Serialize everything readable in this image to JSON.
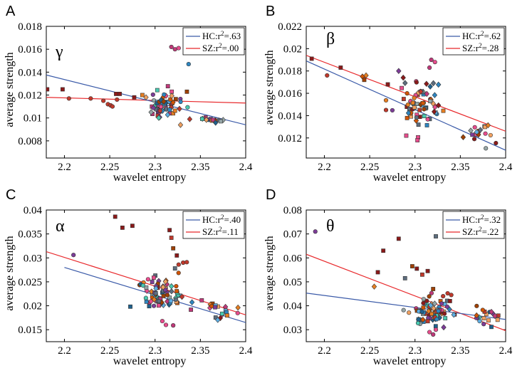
{
  "colors": {
    "hc": "#3a5aa8",
    "sz": "#e8282b",
    "palette": [
      "#c0392b",
      "#8b1a1a",
      "#e67e22",
      "#f0a060",
      "#2e86c1",
      "#5dade2",
      "#48c9b0",
      "#7d3c98",
      "#c0397a",
      "#e74c8c",
      "#95a5a6",
      "#5d6d7e",
      "#d35400",
      "#a04000",
      "#1f618d"
    ]
  },
  "chart_data": [
    {
      "panel": "A",
      "band": "γ",
      "type": "scatter",
      "xlabel": "wavelet entropy",
      "ylabel": "average strength",
      "xlim": [
        2.18,
        2.4
      ],
      "ylim": [
        0.0065,
        0.018
      ],
      "xticks": [
        2.2,
        2.25,
        2.3,
        2.35,
        2.4
      ],
      "xtick_labels": [
        "2.2",
        "2.25",
        "2.3",
        "2.35",
        "2.4"
      ],
      "yticks": [
        0.008,
        0.01,
        0.012,
        0.014,
        0.016,
        0.018
      ],
      "ytick_labels": [
        "0.008",
        "0.01",
        "0.012",
        "0.014",
        "0.016",
        "0.018"
      ],
      "legend": {
        "hc": {
          "prefix": "HC:r",
          "exp": "2",
          "suffix": "=.63"
        },
        "sz": {
          "prefix": "SZ:r",
          "exp": "2",
          "suffix": "=.00"
        }
      },
      "lines": {
        "hc": {
          "x": [
            2.18,
            2.4
          ],
          "y": [
            0.01375,
            0.0094
          ]
        },
        "sz": {
          "x": [
            2.18,
            2.4
          ],
          "y": [
            0.0118,
            0.0113
          ]
        }
      },
      "clusters": [
        {
          "cx": 2.312,
          "cy": 0.011,
          "sx": 0.01,
          "sy": 0.00065,
          "n": 60,
          "seed": 11
        },
        {
          "cx": 2.366,
          "cy": 0.00985,
          "sx": 0.009,
          "sy": 0.0001,
          "n": 16,
          "seed": 12
        }
      ],
      "points": [
        {
          "x": 2.181,
          "y": 0.0125,
          "m": "s",
          "c": 1
        },
        {
          "x": 2.198,
          "y": 0.0125,
          "m": "s",
          "c": 1
        },
        {
          "x": 2.205,
          "y": 0.0117,
          "m": "o",
          "c": 0
        },
        {
          "x": 2.229,
          "y": 0.0117,
          "m": "o",
          "c": 0
        },
        {
          "x": 2.243,
          "y": 0.0115,
          "m": "o",
          "c": 0
        },
        {
          "x": 2.248,
          "y": 0.0112,
          "m": "o",
          "c": 0
        },
        {
          "x": 2.251,
          "y": 0.0111,
          "m": "o",
          "c": 0
        },
        {
          "x": 2.253,
          "y": 0.011,
          "m": "o",
          "c": 0
        },
        {
          "x": 2.258,
          "y": 0.0116,
          "m": "o",
          "c": 0
        },
        {
          "x": 2.257,
          "y": 0.0121,
          "m": "s",
          "c": 1
        },
        {
          "x": 2.261,
          "y": 0.0121,
          "m": "s",
          "c": 1
        },
        {
          "x": 2.277,
          "y": 0.0118,
          "m": "s",
          "c": 1
        },
        {
          "x": 2.286,
          "y": 0.012,
          "m": "s",
          "c": 2
        },
        {
          "x": 2.29,
          "y": 0.0118,
          "m": "d",
          "c": 3
        },
        {
          "x": 2.318,
          "y": 0.0162,
          "m": "o",
          "c": 8
        },
        {
          "x": 2.322,
          "y": 0.016,
          "m": "o",
          "c": 8
        },
        {
          "x": 2.326,
          "y": 0.0161,
          "m": "o",
          "c": 9
        },
        {
          "x": 2.337,
          "y": 0.0147,
          "m": "o",
          "c": 4
        }
      ]
    },
    {
      "panel": "B",
      "band": "β",
      "type": "scatter",
      "xlabel": "wavelet entropy",
      "ylabel": "average strength",
      "xlim": [
        2.18,
        2.4
      ],
      "ylim": [
        0.0102,
        0.022
      ],
      "xticks": [
        2.2,
        2.25,
        2.3,
        2.35,
        2.4
      ],
      "xtick_labels": [
        "2.2",
        "2.25",
        "2.3",
        "2.35",
        "2.4"
      ],
      "yticks": [
        0.012,
        0.014,
        0.016,
        0.018,
        0.02,
        0.022
      ],
      "ytick_labels": [
        "0.012",
        "0.014",
        "0.016",
        "0.018",
        "0.02",
        "0.022"
      ],
      "legend": {
        "hc": {
          "prefix": "HC:r",
          "exp": "2",
          "suffix": "=.62"
        },
        "sz": {
          "prefix": "SZ:r",
          "exp": "2",
          "suffix": "=.28"
        }
      },
      "lines": {
        "hc": {
          "x": [
            2.18,
            2.4
          ],
          "y": [
            0.0189,
            0.0109
          ]
        },
        "sz": {
          "x": [
            2.18,
            2.4
          ],
          "y": [
            0.0194,
            0.0126
          ]
        }
      },
      "clusters": [
        {
          "cx": 2.305,
          "cy": 0.015,
          "sx": 0.012,
          "sy": 0.0011,
          "n": 70,
          "seed": 21
        },
        {
          "cx": 2.368,
          "cy": 0.0122,
          "sx": 0.01,
          "sy": 0.0006,
          "n": 18,
          "seed": 22
        }
      ],
      "points": [
        {
          "x": 2.186,
          "y": 0.0191,
          "m": "s",
          "c": 1
        },
        {
          "x": 2.203,
          "y": 0.0176,
          "m": "o",
          "c": 0
        },
        {
          "x": 2.218,
          "y": 0.0183,
          "m": "s",
          "c": 1
        },
        {
          "x": 2.242,
          "y": 0.0175,
          "m": "d",
          "c": 12
        },
        {
          "x": 2.246,
          "y": 0.0176,
          "m": "d",
          "c": 2
        },
        {
          "x": 2.244,
          "y": 0.0172,
          "m": "s",
          "c": 13
        },
        {
          "x": 2.27,
          "y": 0.0168,
          "m": "s",
          "c": 1
        },
        {
          "x": 2.268,
          "y": 0.0145,
          "m": "o",
          "c": 0
        },
        {
          "x": 2.318,
          "y": 0.019,
          "m": "o",
          "c": 8
        },
        {
          "x": 2.322,
          "y": 0.0188,
          "m": "o",
          "c": 9
        },
        {
          "x": 2.316,
          "y": 0.0183,
          "m": "o",
          "c": 8
        },
        {
          "x": 2.282,
          "y": 0.018,
          "m": "d",
          "c": 7
        },
        {
          "x": 2.287,
          "y": 0.0174,
          "m": "d",
          "c": 1
        }
      ]
    },
    {
      "panel": "C",
      "band": "α",
      "type": "scatter",
      "xlabel": "wavelet entropy",
      "ylabel": "average strength",
      "xlim": [
        2.18,
        2.4
      ],
      "ylim": [
        0.0125,
        0.04
      ],
      "xticks": [
        2.2,
        2.25,
        2.3,
        2.35,
        2.4
      ],
      "xtick_labels": [
        "2.2",
        "2.25",
        "2.3",
        "2.35",
        "2.4"
      ],
      "yticks": [
        0.015,
        0.02,
        0.025,
        0.03,
        0.035,
        0.04
      ],
      "ytick_labels": [
        "0.015",
        "0.02",
        "0.025",
        "0.03",
        "0.035",
        "0.04"
      ],
      "legend": {
        "hc": {
          "prefix": "HC:r",
          "exp": "2",
          "suffix": "=.40"
        },
        "sz": {
          "prefix": "SZ:r",
          "exp": "2",
          "suffix": "=.11"
        }
      },
      "lines": {
        "hc": {
          "x": [
            2.2,
            2.4
          ],
          "y": [
            0.028,
            0.0165
          ]
        },
        "sz": {
          "x": [
            2.18,
            2.4
          ],
          "y": [
            0.0313,
            0.0181
          ]
        }
      },
      "clusters": [
        {
          "cx": 2.305,
          "cy": 0.0222,
          "sx": 0.013,
          "sy": 0.0019,
          "n": 75,
          "seed": 31
        },
        {
          "cx": 2.37,
          "cy": 0.0192,
          "sx": 0.011,
          "sy": 0.0012,
          "n": 20,
          "seed": 32
        }
      ],
      "points": [
        {
          "x": 2.21,
          "y": 0.0306,
          "m": "o",
          "c": 7
        },
        {
          "x": 2.256,
          "y": 0.0386,
          "m": "s",
          "c": 1
        },
        {
          "x": 2.264,
          "y": 0.0363,
          "m": "s",
          "c": 1
        },
        {
          "x": 2.275,
          "y": 0.0367,
          "m": "s",
          "c": 1
        },
        {
          "x": 2.316,
          "y": 0.0358,
          "m": "s",
          "c": 1
        },
        {
          "x": 2.318,
          "y": 0.0342,
          "m": "s",
          "c": 0
        },
        {
          "x": 2.32,
          "y": 0.032,
          "m": "s",
          "c": 13
        },
        {
          "x": 2.324,
          "y": 0.0305,
          "m": "s",
          "c": 1
        },
        {
          "x": 2.322,
          "y": 0.0278,
          "m": "s",
          "c": 11
        },
        {
          "x": 2.326,
          "y": 0.0286,
          "m": "o",
          "c": 0
        },
        {
          "x": 2.331,
          "y": 0.029,
          "m": "o",
          "c": 0
        },
        {
          "x": 2.335,
          "y": 0.0291,
          "m": "o",
          "c": 0
        },
        {
          "x": 2.308,
          "y": 0.0168,
          "m": "o",
          "c": 9
        },
        {
          "x": 2.312,
          "y": 0.016,
          "m": "o",
          "c": 9
        },
        {
          "x": 2.32,
          "y": 0.0159,
          "m": "o",
          "c": 8
        }
      ]
    },
    {
      "panel": "D",
      "band": "θ",
      "type": "scatter",
      "xlabel": "wavelet entropy",
      "ylabel": "average strength",
      "xlim": [
        2.18,
        2.4
      ],
      "ylim": [
        0.025,
        0.08
      ],
      "xticks": [
        2.2,
        2.25,
        2.3,
        2.35,
        2.4
      ],
      "xtick_labels": [
        "2.2",
        "2.25",
        "2.3",
        "2.35",
        "2.4"
      ],
      "yticks": [
        0.03,
        0.04,
        0.05,
        0.06,
        0.07,
        0.08
      ],
      "ytick_labels": [
        "0.03",
        "0.04",
        "0.05",
        "0.06",
        "0.07",
        "0.08"
      ],
      "legend": {
        "hc": {
          "prefix": "HC:r",
          "exp": "2",
          "suffix": "=.32"
        },
        "sz": {
          "prefix": "SZ:r",
          "exp": "2",
          "suffix": "=.22"
        }
      },
      "lines": {
        "hc": {
          "x": [
            2.18,
            2.4
          ],
          "y": [
            0.0453,
            0.0343
          ]
        },
        "sz": {
          "x": [
            2.18,
            2.4
          ],
          "y": [
            0.0615,
            0.0296
          ]
        }
      },
      "clusters": [
        {
          "cx": 2.318,
          "cy": 0.038,
          "sx": 0.012,
          "sy": 0.003,
          "n": 75,
          "seed": 41
        },
        {
          "cx": 2.375,
          "cy": 0.0355,
          "sx": 0.012,
          "sy": 0.0022,
          "n": 20,
          "seed": 42
        }
      ],
      "points": [
        {
          "x": 2.19,
          "y": 0.071,
          "m": "o",
          "c": 7
        },
        {
          "x": 2.259,
          "y": 0.054,
          "m": "s",
          "c": 1
        },
        {
          "x": 2.265,
          "y": 0.063,
          "m": "s",
          "c": 1
        },
        {
          "x": 2.282,
          "y": 0.068,
          "m": "s",
          "c": 1
        },
        {
          "x": 2.289,
          "y": 0.0515,
          "m": "s",
          "c": 11
        },
        {
          "x": 2.297,
          "y": 0.0565,
          "m": "s",
          "c": 13
        },
        {
          "x": 2.302,
          "y": 0.0555,
          "m": "s",
          "c": 1
        },
        {
          "x": 2.308,
          "y": 0.053,
          "m": "s",
          "c": 0
        },
        {
          "x": 2.314,
          "y": 0.0545,
          "m": "s",
          "c": 1
        },
        {
          "x": 2.323,
          "y": 0.069,
          "m": "s",
          "c": 11
        },
        {
          "x": 2.32,
          "y": 0.047,
          "m": "s",
          "c": 13
        },
        {
          "x": 2.331,
          "y": 0.044,
          "m": "o",
          "c": 0
        },
        {
          "x": 2.336,
          "y": 0.0452,
          "m": "o",
          "c": 0
        },
        {
          "x": 2.34,
          "y": 0.0445,
          "m": "o",
          "c": 0
        },
        {
          "x": 2.316,
          "y": 0.029,
          "m": "o",
          "c": 9
        },
        {
          "x": 2.32,
          "y": 0.028,
          "m": "o",
          "c": 8
        },
        {
          "x": 2.323,
          "y": 0.03,
          "m": "o",
          "c": 9
        },
        {
          "x": 2.255,
          "y": 0.048,
          "m": "d",
          "c": 2
        }
      ]
    }
  ]
}
